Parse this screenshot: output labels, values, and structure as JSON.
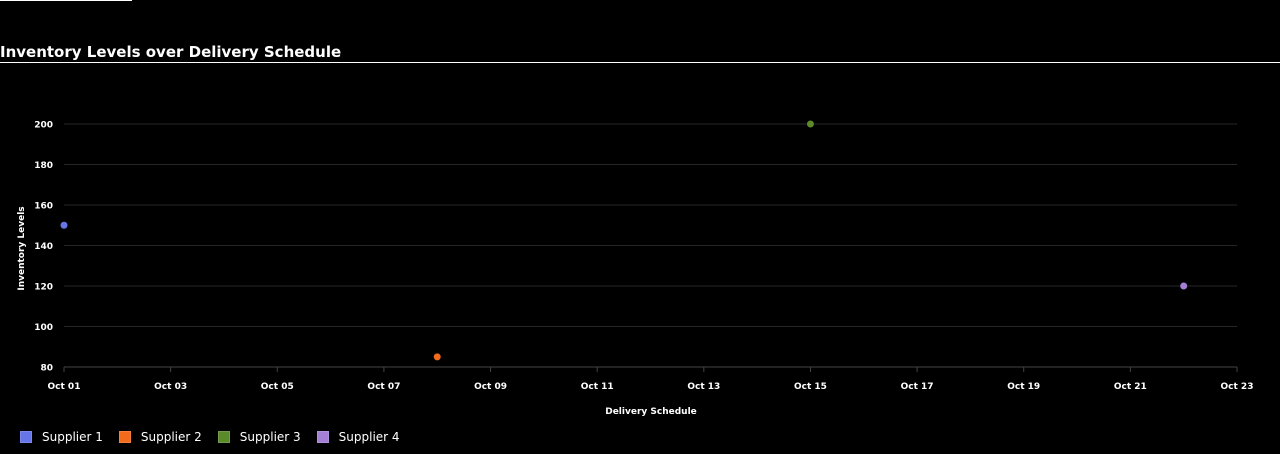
{
  "chart_data": {
    "type": "scatter",
    "title": "Inventory Levels over Delivery Schedule",
    "xlabel": "Delivery Schedule",
    "ylabel": "Inventory Levels",
    "x_ticks": [
      "Oct 01",
      "Oct 03",
      "Oct 05",
      "Oct 07",
      "Oct 09",
      "Oct 11",
      "Oct 13",
      "Oct 15",
      "Oct 17",
      "Oct 19",
      "Oct 21",
      "Oct 23"
    ],
    "y_ticks": [
      "80",
      "100",
      "120",
      "140",
      "160",
      "180",
      "200"
    ],
    "xlim": [
      "2023-10-01",
      "2023-10-23"
    ],
    "ylim": [
      80,
      200
    ],
    "grid": true,
    "legend_position": "bottom-left",
    "series": [
      {
        "name": "Supplier 1",
        "color": "#6675e8",
        "points": [
          {
            "x": "2023-10-01",
            "y": 150
          }
        ]
      },
      {
        "name": "Supplier 2",
        "color": "#f26a1b",
        "points": [
          {
            "x": "2023-10-08",
            "y": 85
          }
        ]
      },
      {
        "name": "Supplier 3",
        "color": "#5a8a2a",
        "points": [
          {
            "x": "2023-10-15",
            "y": 200
          }
        ]
      },
      {
        "name": "Supplier 4",
        "color": "#a37fd6",
        "points": [
          {
            "x": "2023-10-22",
            "y": 120
          }
        ]
      }
    ]
  }
}
